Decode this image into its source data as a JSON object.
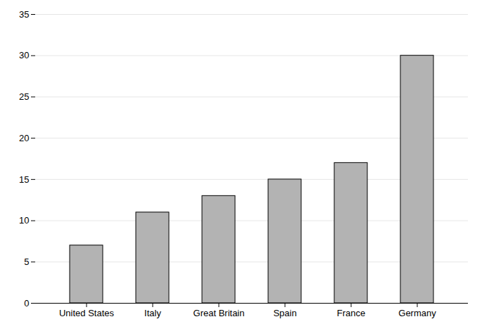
{
  "chart_data": {
    "type": "bar",
    "categories": [
      "United States",
      "Italy",
      "Great Britain",
      "Spain",
      "France",
      "Germany"
    ],
    "values": [
      7,
      11,
      13,
      15,
      17,
      30
    ],
    "color": "#b3b3b3",
    "ylim": [
      0,
      35
    ],
    "yticks": [
      0,
      5,
      10,
      15,
      20,
      25,
      30,
      35
    ],
    "grid": true
  }
}
